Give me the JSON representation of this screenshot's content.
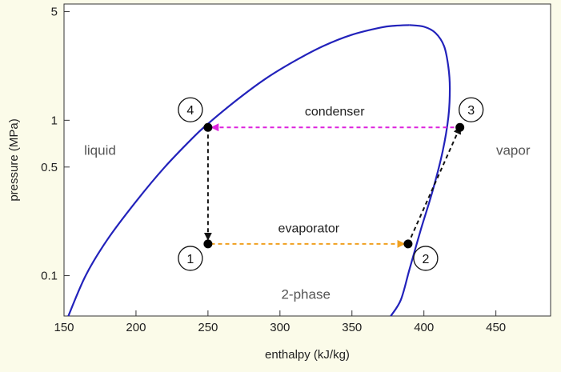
{
  "colors": {
    "dome": "#2222bb",
    "condenser": "#dd22dd",
    "evaporator": "#f0a020",
    "process": "#111111",
    "state_point": "#000000"
  },
  "chart_data": {
    "type": "line",
    "xlabel": "enthalpy (kJ/kg)",
    "ylabel": "pressure (MPa)",
    "xlim": [
      150,
      488
    ],
    "ylim": [
      0.055,
      5.6
    ],
    "y_scale": "log",
    "x_ticks": [
      150,
      200,
      250,
      300,
      350,
      400,
      450
    ],
    "y_ticks": [
      {
        "value": 0.1,
        "label": "0.1"
      },
      {
        "value": 0.5,
        "label": "0.5"
      },
      {
        "value": 1,
        "label": "1"
      },
      {
        "value": 5,
        "label": "5"
      }
    ],
    "grid": false,
    "series": [
      {
        "key": "saturated_liquid",
        "x": [
          153,
          165,
          180,
          200,
          220,
          240,
          250,
          270,
          290,
          310,
          330,
          350,
          370,
          380,
          390
        ],
        "y": [
          0.055,
          0.1,
          0.17,
          0.3,
          0.5,
          0.78,
          0.95,
          1.35,
          1.85,
          2.4,
          3.0,
          3.55,
          3.95,
          4.06,
          4.1
        ]
      },
      {
        "key": "saturated_vapor",
        "x": [
          390,
          400,
          408,
          414,
          417,
          418,
          417,
          413,
          406,
          398,
          390,
          384,
          377
        ],
        "y": [
          4.1,
          4.0,
          3.65,
          3.0,
          2.2,
          1.6,
          1.05,
          0.63,
          0.35,
          0.2,
          0.11,
          0.07,
          0.055
        ]
      }
    ],
    "processes": [
      {
        "key": "condenser",
        "label": "condenser",
        "from": [
          421,
          0.9
        ],
        "to": [
          253,
          0.9
        ]
      },
      {
        "key": "expansion",
        "label": "",
        "from": [
          250,
          0.9
        ],
        "to": [
          250,
          0.172
        ]
      },
      {
        "key": "evaporator",
        "label": "evaporator",
        "from": [
          252,
          0.16
        ],
        "to": [
          386,
          0.16
        ]
      },
      {
        "key": "compression",
        "label": "",
        "from": [
          389,
          0.16
        ],
        "to": [
          425,
          0.9
        ]
      }
    ],
    "states": [
      {
        "label": "1",
        "h": 250,
        "p": 0.16
      },
      {
        "label": "2",
        "h": 389,
        "p": 0.16
      },
      {
        "label": "3",
        "h": 425,
        "p": 0.9
      },
      {
        "label": "4",
        "h": 250,
        "p": 0.9
      }
    ],
    "annotations": [
      {
        "key": "liquid",
        "text": "liquid",
        "h": 175,
        "p": 0.6
      },
      {
        "key": "vapor",
        "text": "vapor",
        "h": 462,
        "p": 0.6
      },
      {
        "key": "two_phase",
        "text": "2-phase",
        "h": 318,
        "p": 0.071
      },
      {
        "key": "condenser",
        "text": "condenser",
        "h": 338,
        "p": 1.07
      },
      {
        "key": "evaporator",
        "text": "evaporator",
        "h": 320,
        "p": 0.19
      }
    ]
  }
}
